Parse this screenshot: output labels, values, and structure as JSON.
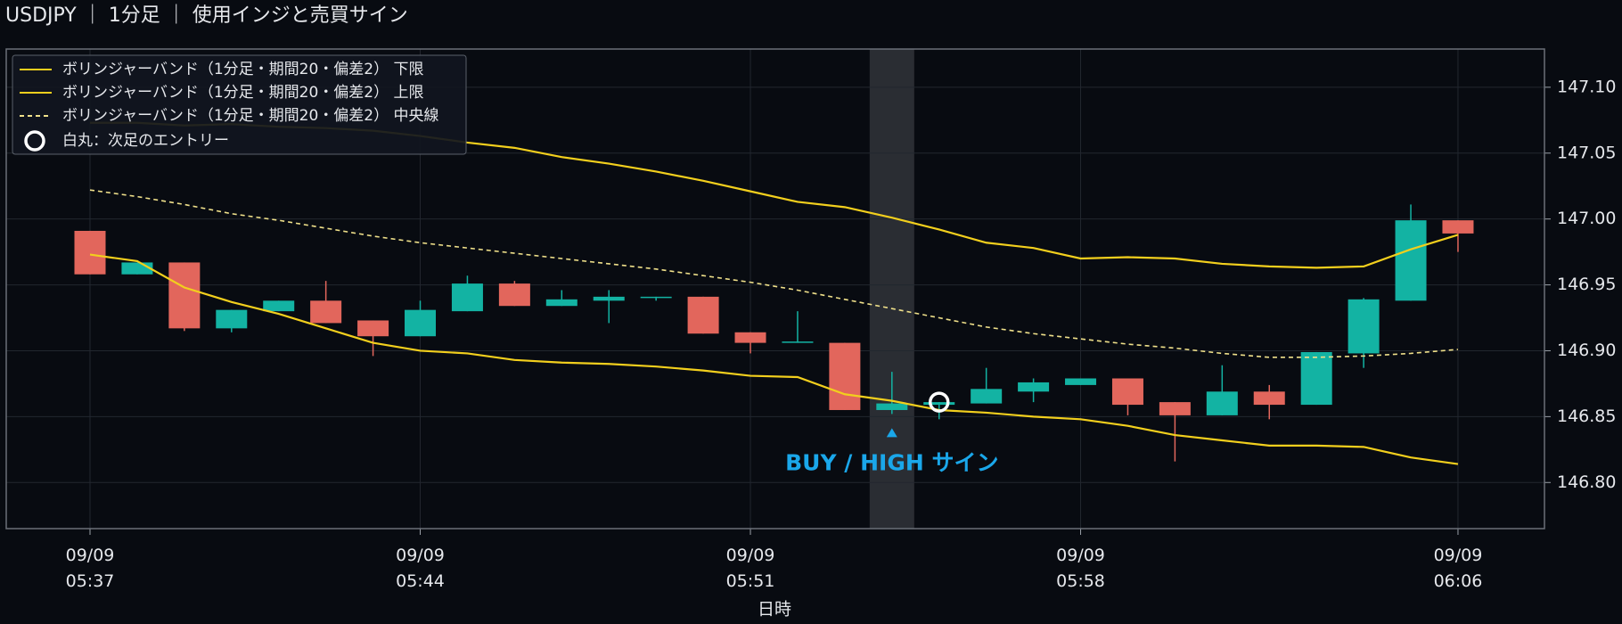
{
  "chart_data": {
    "type": "candlestick",
    "title": "USDJPY ｜ 1分足 ｜ 使用インジと売買サイン",
    "xlabel": "日時",
    "categories": [
      "09/09 05:37",
      null,
      null,
      null,
      null,
      null,
      null,
      "09/09 05:44",
      null,
      null,
      null,
      null,
      null,
      null,
      "09/09 05:51",
      null,
      null,
      null,
      null,
      null,
      null,
      "09/09 05:58",
      null,
      null,
      null,
      null,
      null,
      null,
      null,
      "09/09 06:06"
    ],
    "open": [
      146.991,
      146.958,
      146.967,
      146.917,
      146.93,
      146.938,
      146.923,
      146.911,
      146.93,
      146.951,
      146.934,
      146.938,
      146.94,
      146.941,
      146.914,
      146.906,
      146.906,
      146.855,
      146.859,
      146.86,
      146.869,
      146.874,
      146.879,
      146.861,
      146.851,
      146.869,
      146.859,
      146.898,
      146.938,
      146.999
    ],
    "high": [
      146.991,
      146.967,
      146.967,
      146.931,
      146.938,
      146.953,
      146.923,
      146.938,
      146.957,
      146.953,
      146.946,
      146.946,
      146.941,
      146.941,
      146.914,
      146.93,
      146.906,
      146.884,
      146.861,
      146.887,
      146.879,
      146.879,
      146.879,
      146.861,
      146.889,
      146.874,
      146.899,
      146.94,
      147.011,
      146.999
    ],
    "low": [
      146.958,
      146.958,
      146.915,
      146.914,
      146.93,
      146.921,
      146.896,
      146.911,
      146.93,
      146.934,
      146.934,
      146.921,
      146.938,
      146.913,
      146.898,
      146.906,
      146.855,
      146.852,
      146.848,
      146.86,
      146.861,
      146.874,
      146.851,
      146.816,
      146.851,
      146.848,
      146.859,
      146.887,
      146.938,
      146.975
    ],
    "close": [
      146.958,
      146.967,
      146.917,
      146.931,
      146.938,
      146.921,
      146.911,
      146.931,
      146.951,
      146.934,
      146.939,
      146.941,
      146.941,
      146.913,
      146.906,
      146.907,
      146.855,
      146.86,
      146.861,
      146.871,
      146.876,
      146.879,
      146.859,
      146.851,
      146.869,
      146.859,
      146.899,
      146.939,
      146.999,
      146.989
    ],
    "up_color": "#13b3a3",
    "down_color": "#e2665c",
    "series": [
      {
        "name": "ボリンジャーバンド（1分足・期間20・偏差2） 下限",
        "color": "#f2cf1d",
        "dash": false,
        "values": [
          146.973,
          146.968,
          146.948,
          146.937,
          146.928,
          146.917,
          146.906,
          146.9,
          146.898,
          146.893,
          146.891,
          146.89,
          146.888,
          146.885,
          146.881,
          146.88,
          146.867,
          146.862,
          146.855,
          146.853,
          146.85,
          146.848,
          146.843,
          146.836,
          146.832,
          146.828,
          146.828,
          146.827,
          146.819,
          146.814
        ]
      },
      {
        "name": "ボリンジャーバンド（1分足・期間20・偏差2） 上限",
        "color": "#f2cf1d",
        "dash": false,
        "values": [
          147.073,
          147.073,
          147.071,
          147.072,
          147.07,
          147.069,
          147.067,
          147.063,
          147.058,
          147.054,
          147.047,
          147.042,
          147.036,
          147.029,
          147.021,
          147.013,
          147.009,
          147.001,
          146.992,
          146.982,
          146.978,
          146.97,
          146.971,
          146.97,
          146.966,
          146.964,
          146.963,
          146.964,
          146.977,
          146.988
        ]
      },
      {
        "name": "ボリンジャーバンド（1分足・期間20・偏差2） 中央線",
        "color": "#efe08a",
        "dash": true,
        "values": [
          147.022,
          147.017,
          147.011,
          147.004,
          146.999,
          146.993,
          146.987,
          146.982,
          146.978,
          146.974,
          146.97,
          146.966,
          146.962,
          146.957,
          146.952,
          146.946,
          146.939,
          146.932,
          146.925,
          146.918,
          146.913,
          146.909,
          146.905,
          146.902,
          146.898,
          146.895,
          146.895,
          146.896,
          146.898,
          146.901
        ]
      }
    ],
    "entry": {
      "name": "白丸：次足のエントリー",
      "index": 18,
      "value": 146.861,
      "color": "#ffffff"
    },
    "signal": {
      "text": "BUY / HIGH サイン",
      "index": 17,
      "color": "#1aa7ea"
    },
    "ylim": [
      146.765,
      147.129
    ],
    "yticks": [
      {
        "value": 146.8,
        "label": "146.80"
      },
      146.85,
      {
        "value": 146.9,
        "label": "146.90"
      },
      146.95,
      {
        "value": 147.0,
        "label": "147.00"
      },
      147.05,
      {
        "value": 147.1,
        "label": "147.10"
      }
    ],
    "grid": true,
    "legend": "upper left"
  }
}
